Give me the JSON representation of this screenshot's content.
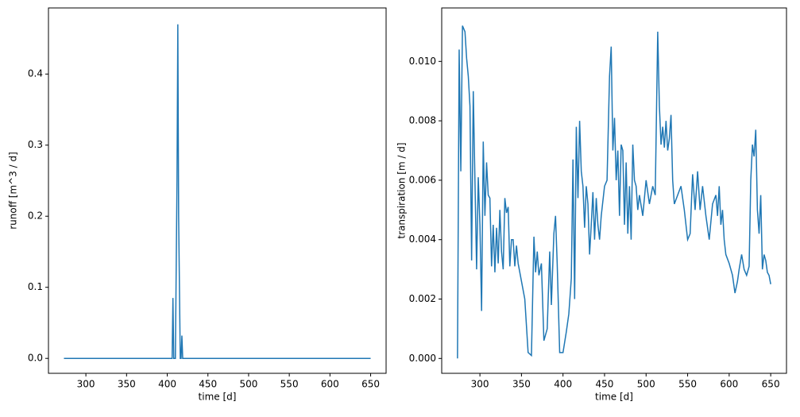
{
  "chart_data": [
    {
      "type": "line",
      "xlabel": "time [d]",
      "ylabel": "runoff [m^3 / d]",
      "x": [
        273,
        406,
        407,
        408,
        410,
        412,
        413,
        414,
        416,
        417,
        418,
        419,
        650
      ],
      "series": [
        {
          "color": "#1f77b4",
          "values": [
            0,
            0,
            0.085,
            0,
            0,
            0.25,
            0.47,
            0.2,
            0,
            0,
            0.032,
            0,
            0
          ]
        }
      ],
      "xlim": [
        254,
        669
      ],
      "xticks": [
        300,
        350,
        400,
        450,
        500,
        550,
        600,
        650
      ],
      "ylim": [
        -0.021,
        0.493
      ],
      "yticks": [
        {
          "value": 0,
          "label": "0.0"
        },
        0.1,
        0.2,
        0.3,
        0.4
      ]
    },
    {
      "type": "line",
      "xlabel": "time [d]",
      "ylabel": "transpiration [m / d]",
      "x": [
        273,
        275,
        277,
        279,
        282,
        284,
        286,
        288,
        290,
        292,
        294,
        296,
        298,
        300,
        302,
        304,
        306,
        308,
        310,
        312,
        314,
        316,
        318,
        320,
        322,
        324,
        326,
        328,
        330,
        332,
        334,
        336,
        338,
        340,
        342,
        344,
        346,
        350,
        354,
        358,
        362,
        365,
        367,
        369,
        371,
        374,
        377,
        381,
        384,
        386,
        389,
        391,
        393,
        396,
        400,
        404,
        407,
        410,
        412,
        414,
        416,
        418,
        420,
        422,
        424,
        426,
        428,
        430,
        432,
        434,
        436,
        438,
        440,
        442,
        444,
        446,
        450,
        453,
        456,
        458,
        460,
        462,
        464,
        466,
        468,
        470,
        472,
        474,
        476,
        478,
        480,
        482,
        484,
        486,
        488,
        490,
        492,
        496,
        500,
        504,
        508,
        511,
        514,
        516,
        518,
        520,
        522,
        524,
        526,
        528,
        530,
        532,
        534,
        538,
        542,
        546,
        550,
        553,
        556,
        559,
        562,
        565,
        568,
        572,
        576,
        580,
        584,
        586,
        588,
        590,
        592,
        594,
        596,
        600,
        604,
        607,
        610,
        612,
        615,
        618,
        621,
        624,
        626,
        628,
        630,
        632,
        634,
        636,
        638,
        640,
        642,
        644,
        646,
        648,
        650
      ],
      "series": [
        {
          "color": "#1f77b4",
          "values": [
            0.0,
            0.0104,
            0.0063,
            0.0112,
            0.011,
            0.0101,
            0.0095,
            0.0085,
            0.0033,
            0.009,
            0.006,
            0.003,
            0.0061,
            0.0045,
            0.0016,
            0.0073,
            0.0048,
            0.0066,
            0.0055,
            0.0054,
            0.0031,
            0.0045,
            0.0029,
            0.0044,
            0.0032,
            0.005,
            0.0036,
            0.003,
            0.0054,
            0.0049,
            0.0051,
            0.0031,
            0.004,
            0.004,
            0.0031,
            0.0038,
            0.0032,
            0.0026,
            0.002,
            0.0002,
            0.0001,
            0.0041,
            0.0029,
            0.0036,
            0.0028,
            0.0032,
            0.0006,
            0.001,
            0.0036,
            0.0018,
            0.0042,
            0.0048,
            0.0032,
            0.0002,
            0.0002,
            0.0009,
            0.0015,
            0.0027,
            0.0067,
            0.002,
            0.0078,
            0.0054,
            0.008,
            0.0063,
            0.0058,
            0.0044,
            0.0058,
            0.0052,
            0.0035,
            0.0045,
            0.0056,
            0.004,
            0.0054,
            0.0045,
            0.004,
            0.0048,
            0.0058,
            0.006,
            0.0095,
            0.0105,
            0.007,
            0.0081,
            0.006,
            0.007,
            0.0048,
            0.0072,
            0.007,
            0.0045,
            0.0066,
            0.0042,
            0.0058,
            0.004,
            0.0072,
            0.006,
            0.0058,
            0.005,
            0.0055,
            0.0048,
            0.006,
            0.0052,
            0.0058,
            0.0055,
            0.011,
            0.0085,
            0.0072,
            0.0078,
            0.0071,
            0.008,
            0.007,
            0.0074,
            0.0082,
            0.006,
            0.0052,
            0.0055,
            0.0058,
            0.005,
            0.004,
            0.0042,
            0.0062,
            0.005,
            0.0063,
            0.005,
            0.0058,
            0.0048,
            0.004,
            0.0052,
            0.0055,
            0.0048,
            0.0058,
            0.0045,
            0.005,
            0.004,
            0.0035,
            0.0032,
            0.0028,
            0.0022,
            0.0026,
            0.003,
            0.0035,
            0.003,
            0.0028,
            0.0031,
            0.006,
            0.0072,
            0.0068,
            0.0077,
            0.005,
            0.0042,
            0.0055,
            0.003,
            0.0035,
            0.0033,
            0.0029,
            0.0028,
            0.0025
          ]
        }
      ],
      "xlim": [
        254,
        669
      ],
      "xticks": [
        300,
        350,
        400,
        450,
        500,
        550,
        600,
        650
      ],
      "ylim": [
        -0.0005,
        0.0118
      ],
      "yticks": [
        {
          "value": 0,
          "label": "0.000"
        },
        {
          "value": 0.002,
          "label": "0.002"
        },
        {
          "value": 0.004,
          "label": "0.004"
        },
        {
          "value": 0.006,
          "label": "0.006"
        },
        {
          "value": 0.008,
          "label": "0.008"
        },
        {
          "value": 0.01,
          "label": "0.010"
        }
      ]
    }
  ]
}
